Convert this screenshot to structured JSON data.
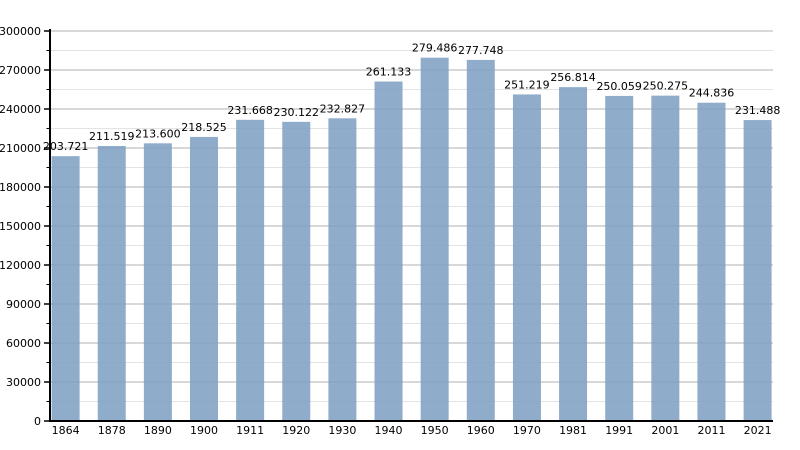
{
  "chart_data": {
    "type": "bar",
    "title": "",
    "xlabel": "",
    "ylabel": "",
    "categories": [
      "1864",
      "1878",
      "1890",
      "1900",
      "1911",
      "1920",
      "1930",
      "1940",
      "1950",
      "1960",
      "1970",
      "1981",
      "1991",
      "2001",
      "2011",
      "2021"
    ],
    "values": [
      203721,
      211519,
      213600,
      218525,
      231668,
      230122,
      232827,
      261133,
      279486,
      277748,
      251219,
      256814,
      250059,
      250275,
      244836,
      231488
    ],
    "value_labels": [
      "203.721",
      "211.519",
      "213.600",
      "218.525",
      "231.668",
      "230.122",
      "232.827",
      "261.133",
      "279.486",
      "277.748",
      "251.219",
      "256.814",
      "250.059",
      "250.275",
      "244.836",
      "231.488"
    ],
    "ylim": [
      0,
      300000
    ],
    "y_tick_step": 30000,
    "y_minor_tick_step": 15000,
    "y_tick_labels": [
      "0",
      "30000",
      "60000",
      "90000",
      "120000",
      "150000",
      "180000",
      "210000",
      "240000",
      "270000",
      "300000"
    ],
    "grid": "horizontal, major and minor, on",
    "legend": "none",
    "colors": {
      "bar_fill": "#7FA1C3",
      "bar_fill_rendered": "#8FADCE",
      "major_gridline": "#B0B0B0",
      "minor_gridline": "#E3E3E3",
      "axis": "#000000",
      "label_text": "#000000",
      "background": "#FFFFFF"
    }
  }
}
